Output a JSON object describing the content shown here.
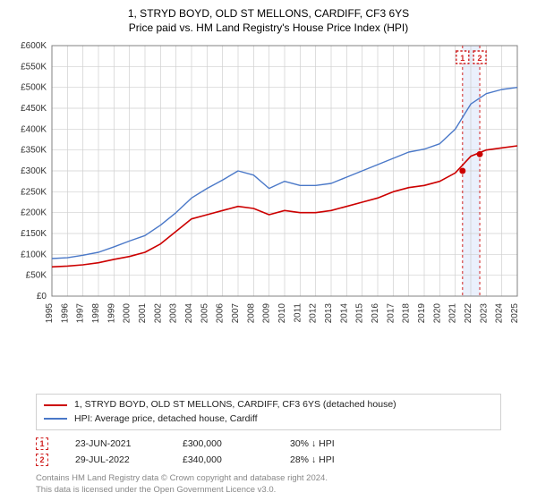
{
  "title_main": "1, STRYD BOYD, OLD ST MELLONS, CARDIFF, CF3 6YS",
  "title_sub": "Price paid vs. HM Land Registry's House Price Index (HPI)",
  "chart": {
    "type": "line",
    "background_color": "#ffffff",
    "grid_color": "#cfcfcf",
    "axis_color": "#808080",
    "tick_fontsize": 10,
    "tick_color": "#333333",
    "y": {
      "min": 0,
      "max": 600000,
      "step": 50000,
      "labels": [
        "£0",
        "£50K",
        "£100K",
        "£150K",
        "£200K",
        "£250K",
        "£300K",
        "£350K",
        "£400K",
        "£450K",
        "£500K",
        "£550K",
        "£600K"
      ]
    },
    "x": {
      "min": 1995,
      "max": 2025,
      "step": 1,
      "labels": [
        "1995",
        "1996",
        "1997",
        "1998",
        "1999",
        "2000",
        "2001",
        "2002",
        "2003",
        "2004",
        "2005",
        "2006",
        "2007",
        "2008",
        "2009",
        "2010",
        "2011",
        "2012",
        "2013",
        "2014",
        "2015",
        "2016",
        "2017",
        "2018",
        "2019",
        "2020",
        "2021",
        "2022",
        "2023",
        "2024",
        "2025"
      ]
    },
    "highlight_band": {
      "from": 2021.47,
      "to": 2022.58,
      "fill": "#e8eefc",
      "opacity": 0.9
    },
    "markers": [
      {
        "label": "1",
        "x": 2021.47,
        "y": 300000,
        "box_color": "#d02020"
      },
      {
        "label": "2",
        "x": 2022.58,
        "y": 340000,
        "box_color": "#d02020"
      }
    ],
    "series": [
      {
        "name": "price_paid",
        "color": "#cc0000",
        "width": 1.6,
        "data": [
          [
            1995,
            70000
          ],
          [
            1996,
            72000
          ],
          [
            1997,
            75000
          ],
          [
            1998,
            80000
          ],
          [
            1999,
            88000
          ],
          [
            2000,
            95000
          ],
          [
            2001,
            105000
          ],
          [
            2002,
            125000
          ],
          [
            2003,
            155000
          ],
          [
            2004,
            185000
          ],
          [
            2005,
            195000
          ],
          [
            2006,
            205000
          ],
          [
            2007,
            215000
          ],
          [
            2008,
            210000
          ],
          [
            2009,
            195000
          ],
          [
            2010,
            205000
          ],
          [
            2011,
            200000
          ],
          [
            2012,
            200000
          ],
          [
            2013,
            205000
          ],
          [
            2014,
            215000
          ],
          [
            2015,
            225000
          ],
          [
            2016,
            235000
          ],
          [
            2017,
            250000
          ],
          [
            2018,
            260000
          ],
          [
            2019,
            265000
          ],
          [
            2020,
            275000
          ],
          [
            2021,
            295000
          ],
          [
            2022,
            335000
          ],
          [
            2023,
            350000
          ],
          [
            2024,
            355000
          ],
          [
            2025,
            360000
          ]
        ]
      },
      {
        "name": "hpi",
        "color": "#4a78c8",
        "width": 1.4,
        "data": [
          [
            1995,
            90000
          ],
          [
            1996,
            92000
          ],
          [
            1997,
            98000
          ],
          [
            1998,
            105000
          ],
          [
            1999,
            118000
          ],
          [
            2000,
            132000
          ],
          [
            2001,
            145000
          ],
          [
            2002,
            170000
          ],
          [
            2003,
            200000
          ],
          [
            2004,
            235000
          ],
          [
            2005,
            258000
          ],
          [
            2006,
            278000
          ],
          [
            2007,
            300000
          ],
          [
            2008,
            290000
          ],
          [
            2009,
            258000
          ],
          [
            2010,
            275000
          ],
          [
            2011,
            265000
          ],
          [
            2012,
            265000
          ],
          [
            2013,
            270000
          ],
          [
            2014,
            285000
          ],
          [
            2015,
            300000
          ],
          [
            2016,
            315000
          ],
          [
            2017,
            330000
          ],
          [
            2018,
            345000
          ],
          [
            2019,
            352000
          ],
          [
            2020,
            365000
          ],
          [
            2021,
            400000
          ],
          [
            2022,
            460000
          ],
          [
            2023,
            485000
          ],
          [
            2024,
            495000
          ],
          [
            2025,
            500000
          ]
        ]
      }
    ]
  },
  "legend": {
    "items": [
      {
        "color": "#cc0000",
        "label": "1, STRYD BOYD, OLD ST MELLONS, CARDIFF, CF3 6YS (detached house)"
      },
      {
        "color": "#4a78c8",
        "label": "HPI: Average price, detached house, Cardiff"
      }
    ]
  },
  "sales": [
    {
      "marker": "1",
      "date": "23-JUN-2021",
      "price": "£300,000",
      "pct": "30%",
      "arrow": "↓",
      "vs": "HPI"
    },
    {
      "marker": "2",
      "date": "29-JUL-2022",
      "price": "£340,000",
      "pct": "28%",
      "arrow": "↓",
      "vs": "HPI"
    }
  ],
  "footer_line1": "Contains HM Land Registry data © Crown copyright and database right 2024.",
  "footer_line2": "This data is licensed under the Open Government Licence v3.0."
}
